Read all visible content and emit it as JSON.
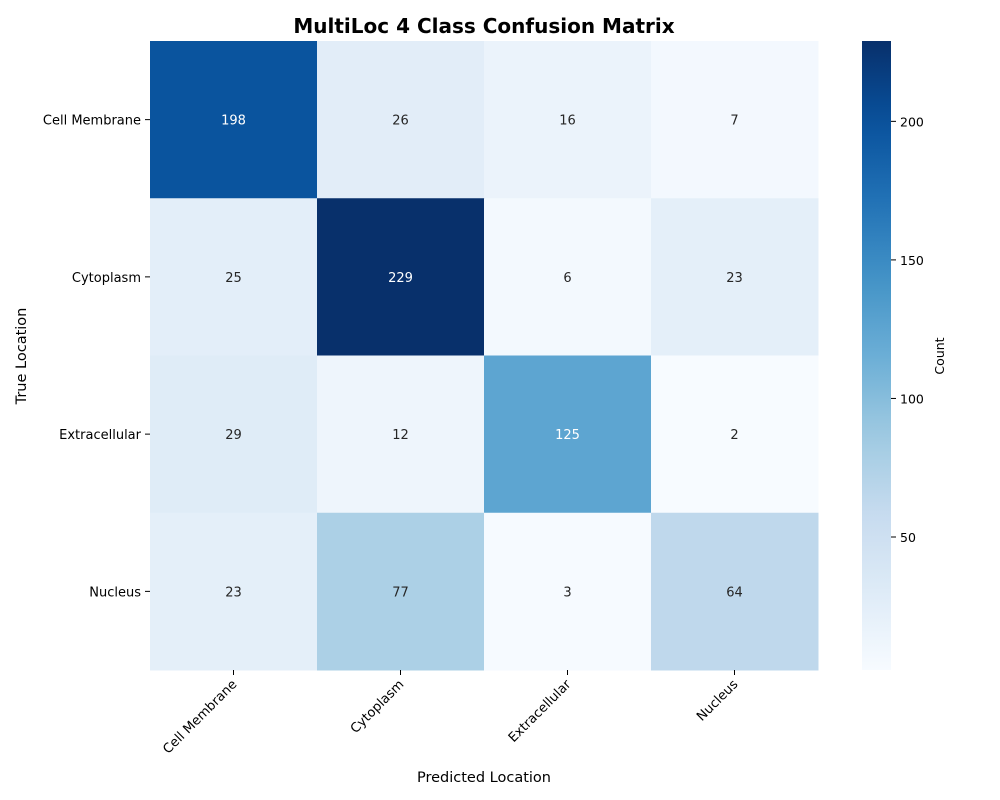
{
  "chart_data": {
    "type": "heatmap",
    "title": "MultiLoc 4 Class Confusion Matrix",
    "xlabel": "Predicted Location",
    "ylabel": "True Location",
    "x_categories": [
      "Cell Membrane",
      "Cytoplasm",
      "Extracellular",
      "Nucleus"
    ],
    "y_categories": [
      "Cell Membrane",
      "Cytoplasm",
      "Extracellular",
      "Nucleus"
    ],
    "values": [
      [
        198,
        26,
        16,
        7
      ],
      [
        25,
        229,
        6,
        23
      ],
      [
        29,
        12,
        125,
        2
      ],
      [
        23,
        77,
        3,
        64
      ]
    ],
    "colorbar": {
      "label": "Count",
      "range": [
        2,
        229
      ],
      "ticks": [
        50,
        100,
        150,
        200
      ],
      "colormap": "Blues"
    },
    "grid": false
  }
}
